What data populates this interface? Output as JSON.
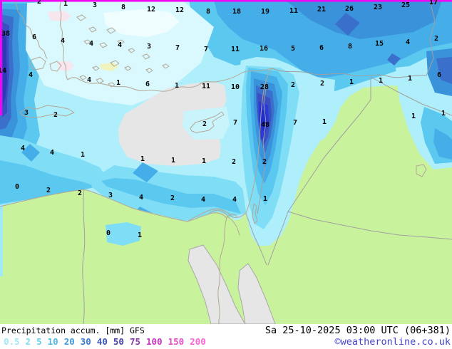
{
  "legend": {
    "title": "Precipitation accum. [mm] GFS",
    "datetime": "Sa 25-10-2025 03:00 UTC (06+381)",
    "copyright": "©weatheronline.co.uk",
    "unit": "mm",
    "model": "GFS",
    "scale": [
      {
        "label": "0.5",
        "color": "#9fe8f4"
      },
      {
        "label": "2",
        "color": "#7edef2"
      },
      {
        "label": "5",
        "color": "#64d0ee"
      },
      {
        "label": "10",
        "color": "#4fb9e8"
      },
      {
        "label": "20",
        "color": "#3f9cdd"
      },
      {
        "label": "30",
        "color": "#3a7bd0"
      },
      {
        "label": "40",
        "color": "#3a57c2"
      },
      {
        "label": "50",
        "color": "#4940ac"
      },
      {
        "label": "75",
        "color": "#8838ac"
      },
      {
        "label": "100",
        "color": "#c937c6"
      },
      {
        "label": "150",
        "color": "#e44fc8"
      },
      {
        "label": "200",
        "color": "#f767d8"
      }
    ]
  },
  "map": {
    "frame_color": "#f404f4",
    "sea_no_precip_color": "#e6e6e6",
    "land_no_precip_color": "#c9f29c",
    "values": [
      [
        55,
        3,
        "2"
      ],
      [
        92,
        6,
        "1"
      ],
      [
        133,
        8,
        "3"
      ],
      [
        173,
        11,
        "8"
      ],
      [
        212,
        14,
        "12"
      ],
      [
        252,
        15,
        "12"
      ],
      [
        292,
        17,
        "8"
      ],
      [
        332,
        17,
        "18"
      ],
      [
        372,
        17,
        "19"
      ],
      [
        412,
        16,
        "11"
      ],
      [
        451,
        14,
        "21"
      ],
      [
        490,
        13,
        "26"
      ],
      [
        530,
        11,
        "23"
      ],
      [
        569,
        8,
        "25"
      ],
      [
        608,
        4,
        "17"
      ],
      [
        8,
        48,
        "38"
      ],
      [
        48,
        53,
        "6"
      ],
      [
        88,
        58,
        "4"
      ],
      [
        128,
        62,
        "4"
      ],
      [
        168,
        64,
        "4"
      ],
      [
        209,
        66,
        "3"
      ],
      [
        249,
        68,
        "7"
      ],
      [
        289,
        70,
        "7"
      ],
      [
        330,
        70,
        "11"
      ],
      [
        370,
        69,
        "16"
      ],
      [
        411,
        69,
        "5"
      ],
      [
        451,
        68,
        "6"
      ],
      [
        491,
        66,
        "8"
      ],
      [
        532,
        62,
        "15"
      ],
      [
        572,
        60,
        "4"
      ],
      [
        612,
        55,
        "2"
      ],
      [
        3,
        100,
        "14"
      ],
      [
        43,
        106,
        "4"
      ],
      [
        125,
        113,
        "4"
      ],
      [
        166,
        117,
        "1"
      ],
      [
        207,
        119,
        "6"
      ],
      [
        248,
        121,
        "1"
      ],
      [
        289,
        122,
        "11"
      ],
      [
        330,
        123,
        "10"
      ],
      [
        371,
        123,
        "28"
      ],
      [
        411,
        120,
        "2"
      ],
      [
        452,
        118,
        "2"
      ],
      [
        493,
        116,
        "1"
      ],
      [
        534,
        114,
        "1"
      ],
      [
        575,
        111,
        "1"
      ],
      [
        616,
        106,
        "6"
      ],
      [
        37,
        159,
        "3"
      ],
      [
        78,
        162,
        "2"
      ],
      [
        287,
        175,
        "2"
      ],
      [
        330,
        173,
        "7"
      ],
      [
        372,
        176,
        "48"
      ],
      [
        414,
        173,
        "7"
      ],
      [
        455,
        172,
        "1"
      ],
      [
        580,
        164,
        "1"
      ],
      [
        622,
        160,
        "1"
      ],
      [
        32,
        209,
        "4"
      ],
      [
        73,
        215,
        "4"
      ],
      [
        116,
        218,
        "1"
      ],
      [
        200,
        224,
        "1"
      ],
      [
        243,
        226,
        "1"
      ],
      [
        286,
        227,
        "1"
      ],
      [
        328,
        228,
        "2"
      ],
      [
        371,
        228,
        "2"
      ],
      [
        24,
        263,
        "0"
      ],
      [
        68,
        268,
        "2"
      ],
      [
        112,
        272,
        "2"
      ],
      [
        155,
        275,
        "3"
      ],
      [
        198,
        278,
        "4"
      ],
      [
        242,
        279,
        "2"
      ],
      [
        285,
        281,
        "4"
      ],
      [
        329,
        281,
        "4"
      ],
      [
        372,
        280,
        "1"
      ],
      [
        152,
        328,
        "0"
      ],
      [
        196,
        331,
        "1"
      ]
    ]
  }
}
